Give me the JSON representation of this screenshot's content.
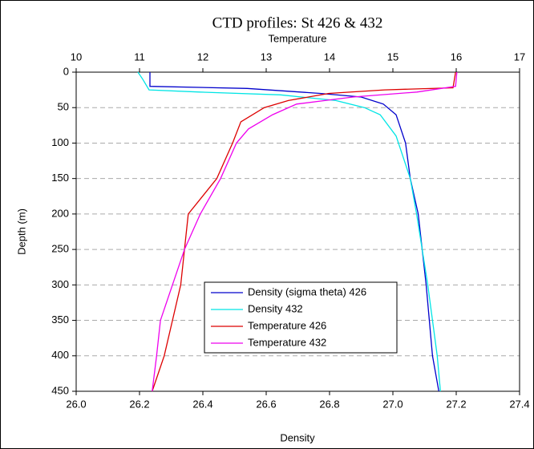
{
  "chart_data": {
    "type": "line",
    "title": "CTD profiles: St 426 & 432",
    "xlabel": "Density",
    "x2label": "Temperature",
    "ylabel": "Depth (m)",
    "xlim": [
      26.0,
      27.4
    ],
    "xticks": [
      {
        "value": 26.0,
        "label": "26.0"
      },
      26.2,
      26.4,
      26.6,
      26.8,
      {
        "value": 27.0,
        "label": "27.0"
      },
      27.2,
      27.4
    ],
    "x2lim": [
      10,
      17
    ],
    "x2ticks": [
      10,
      11,
      12,
      13,
      14,
      15,
      16,
      17
    ],
    "ylim": [
      0,
      450
    ],
    "yticks": [
      0,
      50,
      100,
      150,
      200,
      250,
      300,
      350,
      400,
      450
    ],
    "y_inverted": true,
    "grid": true,
    "series": [
      {
        "name": "Density (sigma theta) 426",
        "color": "#0000cc",
        "x": [
          26.233,
          26.233,
          26.54,
          26.77,
          26.9,
          26.97,
          27.01,
          27.04,
          27.055,
          27.08,
          27.105,
          27.125,
          27.145
        ],
        "y": [
          0,
          20,
          23,
          30,
          35,
          45,
          60,
          100,
          150,
          200,
          300,
          400,
          450
        ]
      },
      {
        "name": "Density 432",
        "color": "#00e5e5",
        "x": [
          26.195,
          26.21,
          26.23,
          26.39,
          26.645,
          26.82,
          26.91,
          26.96,
          27.01,
          27.055,
          27.075,
          27.11,
          27.14,
          27.15
        ],
        "y": [
          0,
          10,
          25,
          28,
          32,
          40,
          50,
          60,
          90,
          150,
          200,
          300,
          400,
          450
        ]
      },
      {
        "name": "Temperature 426",
        "color": "#dd0000",
        "axis": "x2",
        "x": [
          15.99,
          15.95,
          14.87,
          13.99,
          13.35,
          12.97,
          12.6,
          12.47,
          12.22,
          11.77,
          11.71,
          11.65,
          11.52,
          11.39,
          11.2
        ],
        "y": [
          0,
          22,
          25,
          30,
          40,
          50,
          70,
          100,
          150,
          200,
          250,
          300,
          350,
          400,
          450
        ]
      },
      {
        "name": "Temperature 432",
        "color": "#ee00ee",
        "axis": "x2",
        "x": [
          16.01,
          15.99,
          15.38,
          14.37,
          13.48,
          13.1,
          12.72,
          12.53,
          12.28,
          11.96,
          11.71,
          11.52,
          11.33,
          11.27,
          11.2
        ],
        "y": [
          0,
          20,
          28,
          35,
          45,
          60,
          80,
          100,
          150,
          200,
          250,
          300,
          350,
          400,
          450
        ]
      }
    ]
  }
}
